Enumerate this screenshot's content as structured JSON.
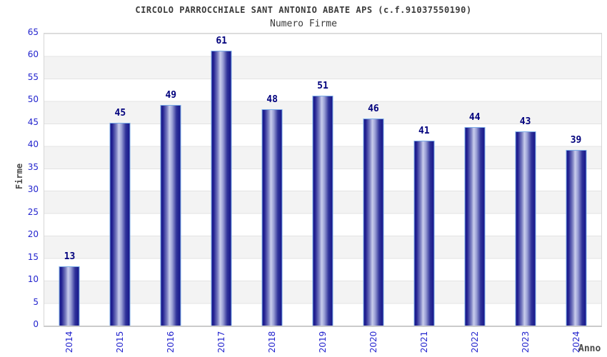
{
  "header": {
    "title": "CIRCOLO PARROCCHIALE SANT ANTONIO ABATE APS (c.f.91037550190)",
    "subtitle": "Numero Firme"
  },
  "axes": {
    "y_label": "Firme",
    "x_label": "Anno",
    "y_tick_labels": [
      "0",
      "5",
      "10",
      "15",
      "20",
      "25",
      "30",
      "35",
      "40",
      "45",
      "50",
      "55",
      "60",
      "65"
    ]
  },
  "colors": {
    "tick_label_blue": "#2324ce",
    "value_label_navy": "#00007d",
    "bar_dark": "#16168a",
    "bar_highlight": "#c9cdec",
    "bar_border_lightblue": "#7aabe7",
    "band_gray": "#f3f3f3",
    "grid_line": "#e3e3e3",
    "heading_gray": "#3a3a3a"
  },
  "chart_data": {
    "type": "bar",
    "title": "CIRCOLO PARROCCHIALE SANT ANTONIO ABATE APS (c.f.91037550190)",
    "subtitle": "Numero Firme",
    "xlabel": "Anno",
    "ylabel": "Firme",
    "categories": [
      "2014",
      "2015",
      "2016",
      "2017",
      "2018",
      "2019",
      "2020",
      "2021",
      "2022",
      "2023",
      "2024"
    ],
    "values": [
      13,
      45,
      49,
      61,
      48,
      51,
      46,
      41,
      44,
      43,
      39
    ],
    "ylim": [
      0,
      65
    ],
    "ytick_step": 5,
    "grid": "horizontal alternating white/gray bands every 5 units with light gridlines",
    "legend_position": "none",
    "bar_style": "vertical navy cylinder gradient with light blue outline, value labels above bars"
  }
}
